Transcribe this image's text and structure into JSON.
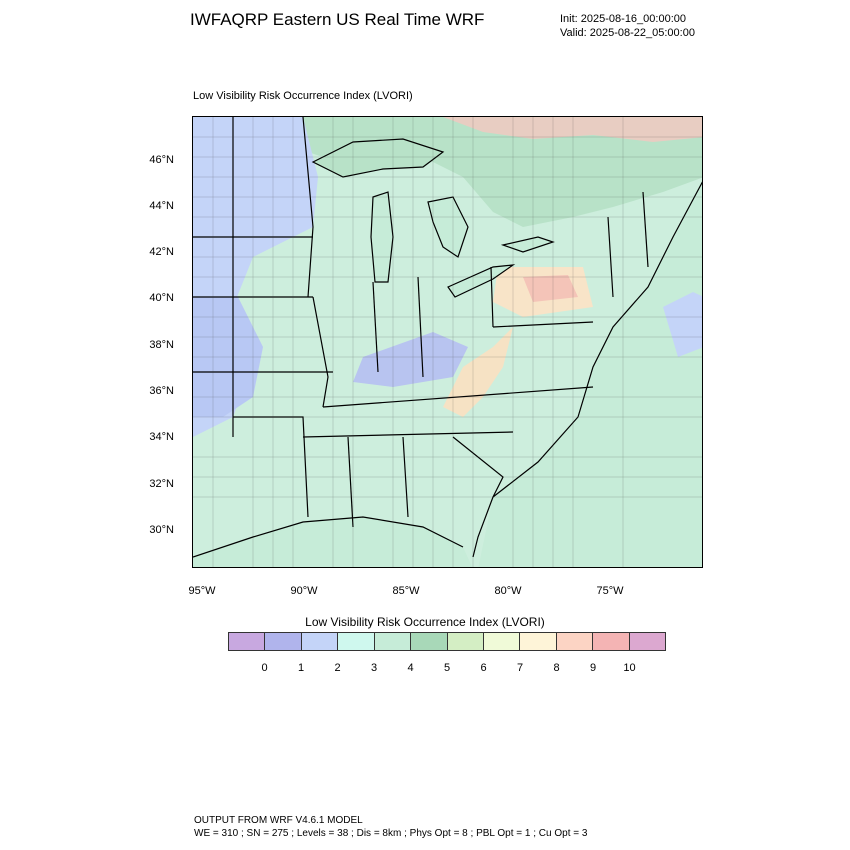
{
  "header": {
    "title": "IWFAQRP Eastern US Real Time WRF",
    "init": "Init: 2025-08-16_00:00:00",
    "valid": "Valid: 2025-08-22_05:00:00"
  },
  "plot": {
    "title": "Low Visibility Risk Occurrence Index   (LVORI)",
    "lat_labels": [
      "46°N",
      "44°N",
      "42°N",
      "40°N",
      "38°N",
      "36°N",
      "34°N",
      "32°N",
      "30°N"
    ],
    "lon_labels": [
      "95°W",
      "90°W",
      "85°W",
      "80°W",
      "75°W"
    ]
  },
  "colorbar": {
    "title": "Low Visibility Risk Occurrence Index  (LVORI)",
    "labels": [
      "0",
      "1",
      "2",
      "3",
      "4",
      "5",
      "6",
      "7",
      "8",
      "9",
      "10"
    ],
    "colors": [
      "#c8a8e0",
      "#b0b4ec",
      "#c4d4f8",
      "#cff8ee",
      "#c6ecd8",
      "#a8d8b8",
      "#d4eec4",
      "#f0fad8",
      "#fef4d8",
      "#fcd4c4",
      "#f4b4b4",
      "#dca8d0"
    ]
  },
  "footer": {
    "line1": "OUTPUT FROM WRF V4.6.1 MODEL",
    "line2": "WE = 310 ; SN = 275 ; Levels = 38 ; Dis = 8km ; Phys Opt = 8 ; PBL Opt = 1 ; Cu Opt = 3"
  }
}
